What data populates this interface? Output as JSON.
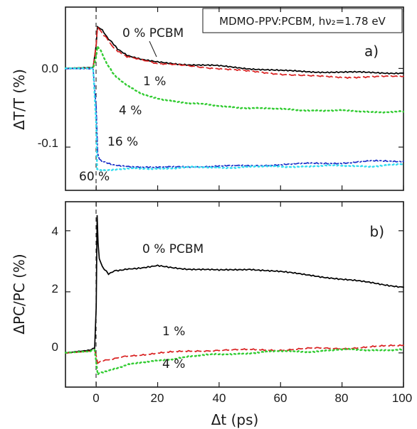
{
  "chart_data": [
    {
      "type": "line",
      "panel_label": "a)",
      "legend_box": "MDMO-PPV:PCBM, hν₂=1.78 eV",
      "ylabel": "ΔT/T (%)",
      "xlabel": "",
      "xlim": [
        -10,
        100
      ],
      "ylim": [
        -0.155,
        0.078
      ],
      "yticks": [
        0.0,
        -0.1
      ],
      "ytick_labels": [
        "0.0",
        "-0.1"
      ],
      "xticks": [
        0,
        20,
        40,
        60,
        80,
        100
      ],
      "grid": false,
      "series": [
        {
          "name": "0 % PCBM",
          "color": "#000000",
          "style": "solid",
          "x": [
            -10,
            -1,
            0,
            0.4,
            1,
            2,
            3,
            4,
            5,
            7,
            10,
            15,
            20,
            30,
            40,
            50,
            60,
            70,
            80,
            90,
            100
          ],
          "y": [
            0.0,
            0.001,
            0.03,
            0.053,
            0.052,
            0.048,
            0.043,
            0.038,
            0.033,
            0.025,
            0.017,
            0.012,
            0.008,
            0.005,
            0.003,
            0.0,
            -0.003,
            -0.004,
            -0.005,
            -0.005,
            -0.006
          ]
        },
        {
          "name": "1 %",
          "color": "#d92020",
          "style": "dashed",
          "x": [
            -10,
            -1,
            0,
            0.4,
            1,
            2,
            3,
            4,
            5,
            7,
            10,
            15,
            20,
            30,
            40,
            50,
            60,
            70,
            80,
            90,
            100
          ],
          "y": [
            0.0,
            0.001,
            0.03,
            0.052,
            0.05,
            0.045,
            0.04,
            0.035,
            0.03,
            0.022,
            0.015,
            0.01,
            0.006,
            0.003,
            0.0,
            -0.004,
            -0.007,
            -0.01,
            -0.011,
            -0.011,
            -0.01
          ]
        },
        {
          "name": "4 %",
          "color": "#33cc33",
          "style": "dotted",
          "x": [
            -10,
            -1,
            0,
            0.4,
            1,
            2,
            3,
            4,
            6,
            8,
            10,
            15,
            20,
            30,
            40,
            50,
            60,
            70,
            80,
            90,
            100
          ],
          "y": [
            0.0,
            0.0,
            0.015,
            0.028,
            0.025,
            0.018,
            0.01,
            0.003,
            -0.008,
            -0.016,
            -0.022,
            -0.032,
            -0.038,
            -0.044,
            -0.048,
            -0.05,
            -0.052,
            -0.053,
            -0.054,
            -0.055,
            -0.055
          ]
        },
        {
          "name": "16 %",
          "color": "#1a2fc8",
          "style": "dashdot",
          "x": [
            -10,
            -1,
            0,
            0.5,
            1,
            2,
            3,
            5,
            10,
            20,
            30,
            40,
            50,
            60,
            70,
            80,
            90,
            100
          ],
          "y": [
            0.0,
            0.0,
            -0.05,
            -0.108,
            -0.115,
            -0.118,
            -0.12,
            -0.122,
            -0.124,
            -0.126,
            -0.125,
            -0.124,
            -0.124,
            -0.122,
            -0.121,
            -0.12,
            -0.118,
            -0.118
          ]
        },
        {
          "name": "60 %",
          "color": "#33dcef",
          "style": "dotted",
          "x": [
            -10,
            -1,
            0,
            0.3,
            1,
            2,
            5,
            10,
            20,
            30,
            40,
            50,
            60,
            70,
            80,
            90,
            100
          ],
          "y": [
            0.0,
            0.0,
            -0.07,
            -0.128,
            -0.13,
            -0.13,
            -0.129,
            -0.128,
            -0.127,
            -0.126,
            -0.126,
            -0.125,
            -0.125,
            -0.124,
            -0.124,
            -0.124,
            -0.122
          ]
        }
      ],
      "annotations": [
        "0 % PCBM",
        "1 %",
        "4 %",
        "16 %",
        "60 %"
      ]
    },
    {
      "type": "line",
      "panel_label": "b)",
      "ylabel": "ΔPC/PC (%)",
      "xlabel": "Δt (ps)",
      "xlim": [
        -10,
        100
      ],
      "ylim": [
        -1.12,
        4.95
      ],
      "yticks": [
        0,
        2,
        4
      ],
      "ytick_labels": [
        "0",
        "2",
        "4"
      ],
      "xticks": [
        0,
        20,
        40,
        60,
        80,
        100
      ],
      "xtick_labels": [
        "0",
        "20",
        "40",
        "60",
        "80",
        "100"
      ],
      "grid": false,
      "series": [
        {
          "name": "0 % PCBM",
          "color": "#000000",
          "style": "solid",
          "x": [
            -10,
            -2,
            -0.5,
            0,
            0.3,
            0.6,
            1,
            2,
            4,
            6,
            10,
            15,
            20,
            30,
            40,
            50,
            60,
            70,
            80,
            90,
            100
          ],
          "y": [
            0.0,
            0.1,
            0.15,
            1.5,
            4.5,
            3.6,
            3.1,
            2.8,
            2.6,
            2.7,
            2.75,
            2.8,
            2.85,
            2.75,
            2.7,
            2.75,
            2.65,
            2.55,
            2.4,
            2.3,
            2.15
          ]
        },
        {
          "name": "1 %",
          "color": "#d92020",
          "style": "dashed",
          "x": [
            -10,
            -2,
            -0.5,
            0,
            0.5,
            1,
            3,
            6,
            10,
            20,
            30,
            40,
            50,
            60,
            70,
            80,
            90,
            100
          ],
          "y": [
            0.0,
            0.05,
            0.1,
            -0.1,
            -0.35,
            -0.3,
            -0.25,
            -0.2,
            -0.1,
            0.0,
            0.05,
            0.1,
            0.1,
            0.1,
            0.15,
            0.15,
            0.2,
            0.25
          ]
        },
        {
          "name": "4 %",
          "color": "#33cc33",
          "style": "dotted",
          "x": [
            -10,
            -2,
            -0.5,
            0,
            0.5,
            1,
            3,
            6,
            10,
            20,
            30,
            40,
            50,
            60,
            70,
            80,
            90,
            100
          ],
          "y": [
            0.0,
            0.05,
            0.1,
            -0.3,
            -0.7,
            -0.65,
            -0.6,
            -0.5,
            -0.4,
            -0.25,
            -0.12,
            -0.05,
            0.0,
            0.05,
            0.05,
            0.1,
            0.1,
            0.1
          ]
        }
      ],
      "annotations": [
        "0 % PCBM",
        "1 %",
        "4 %"
      ]
    }
  ],
  "panels": {
    "a": {
      "label": "a)",
      "legend": "MDMO-PPV:PCBM, hν₂=1.78 eV",
      "ylabel": "ΔT/T (%)",
      "yticks": [
        "0.0",
        "-0.1"
      ],
      "annotations": [
        "0 % PCBM",
        "1 %",
        "4 %",
        "16 %",
        "60 %"
      ]
    },
    "b": {
      "label": "b)",
      "ylabel": "ΔPC/PC (%)",
      "yticks": [
        "4",
        "2",
        "0"
      ],
      "xticks": [
        "0",
        "20",
        "40",
        "60",
        "80",
        "100"
      ],
      "xlabel": "Δt (ps)",
      "annotations": [
        "0 % PCBM",
        "1 %",
        "4 %"
      ]
    }
  }
}
